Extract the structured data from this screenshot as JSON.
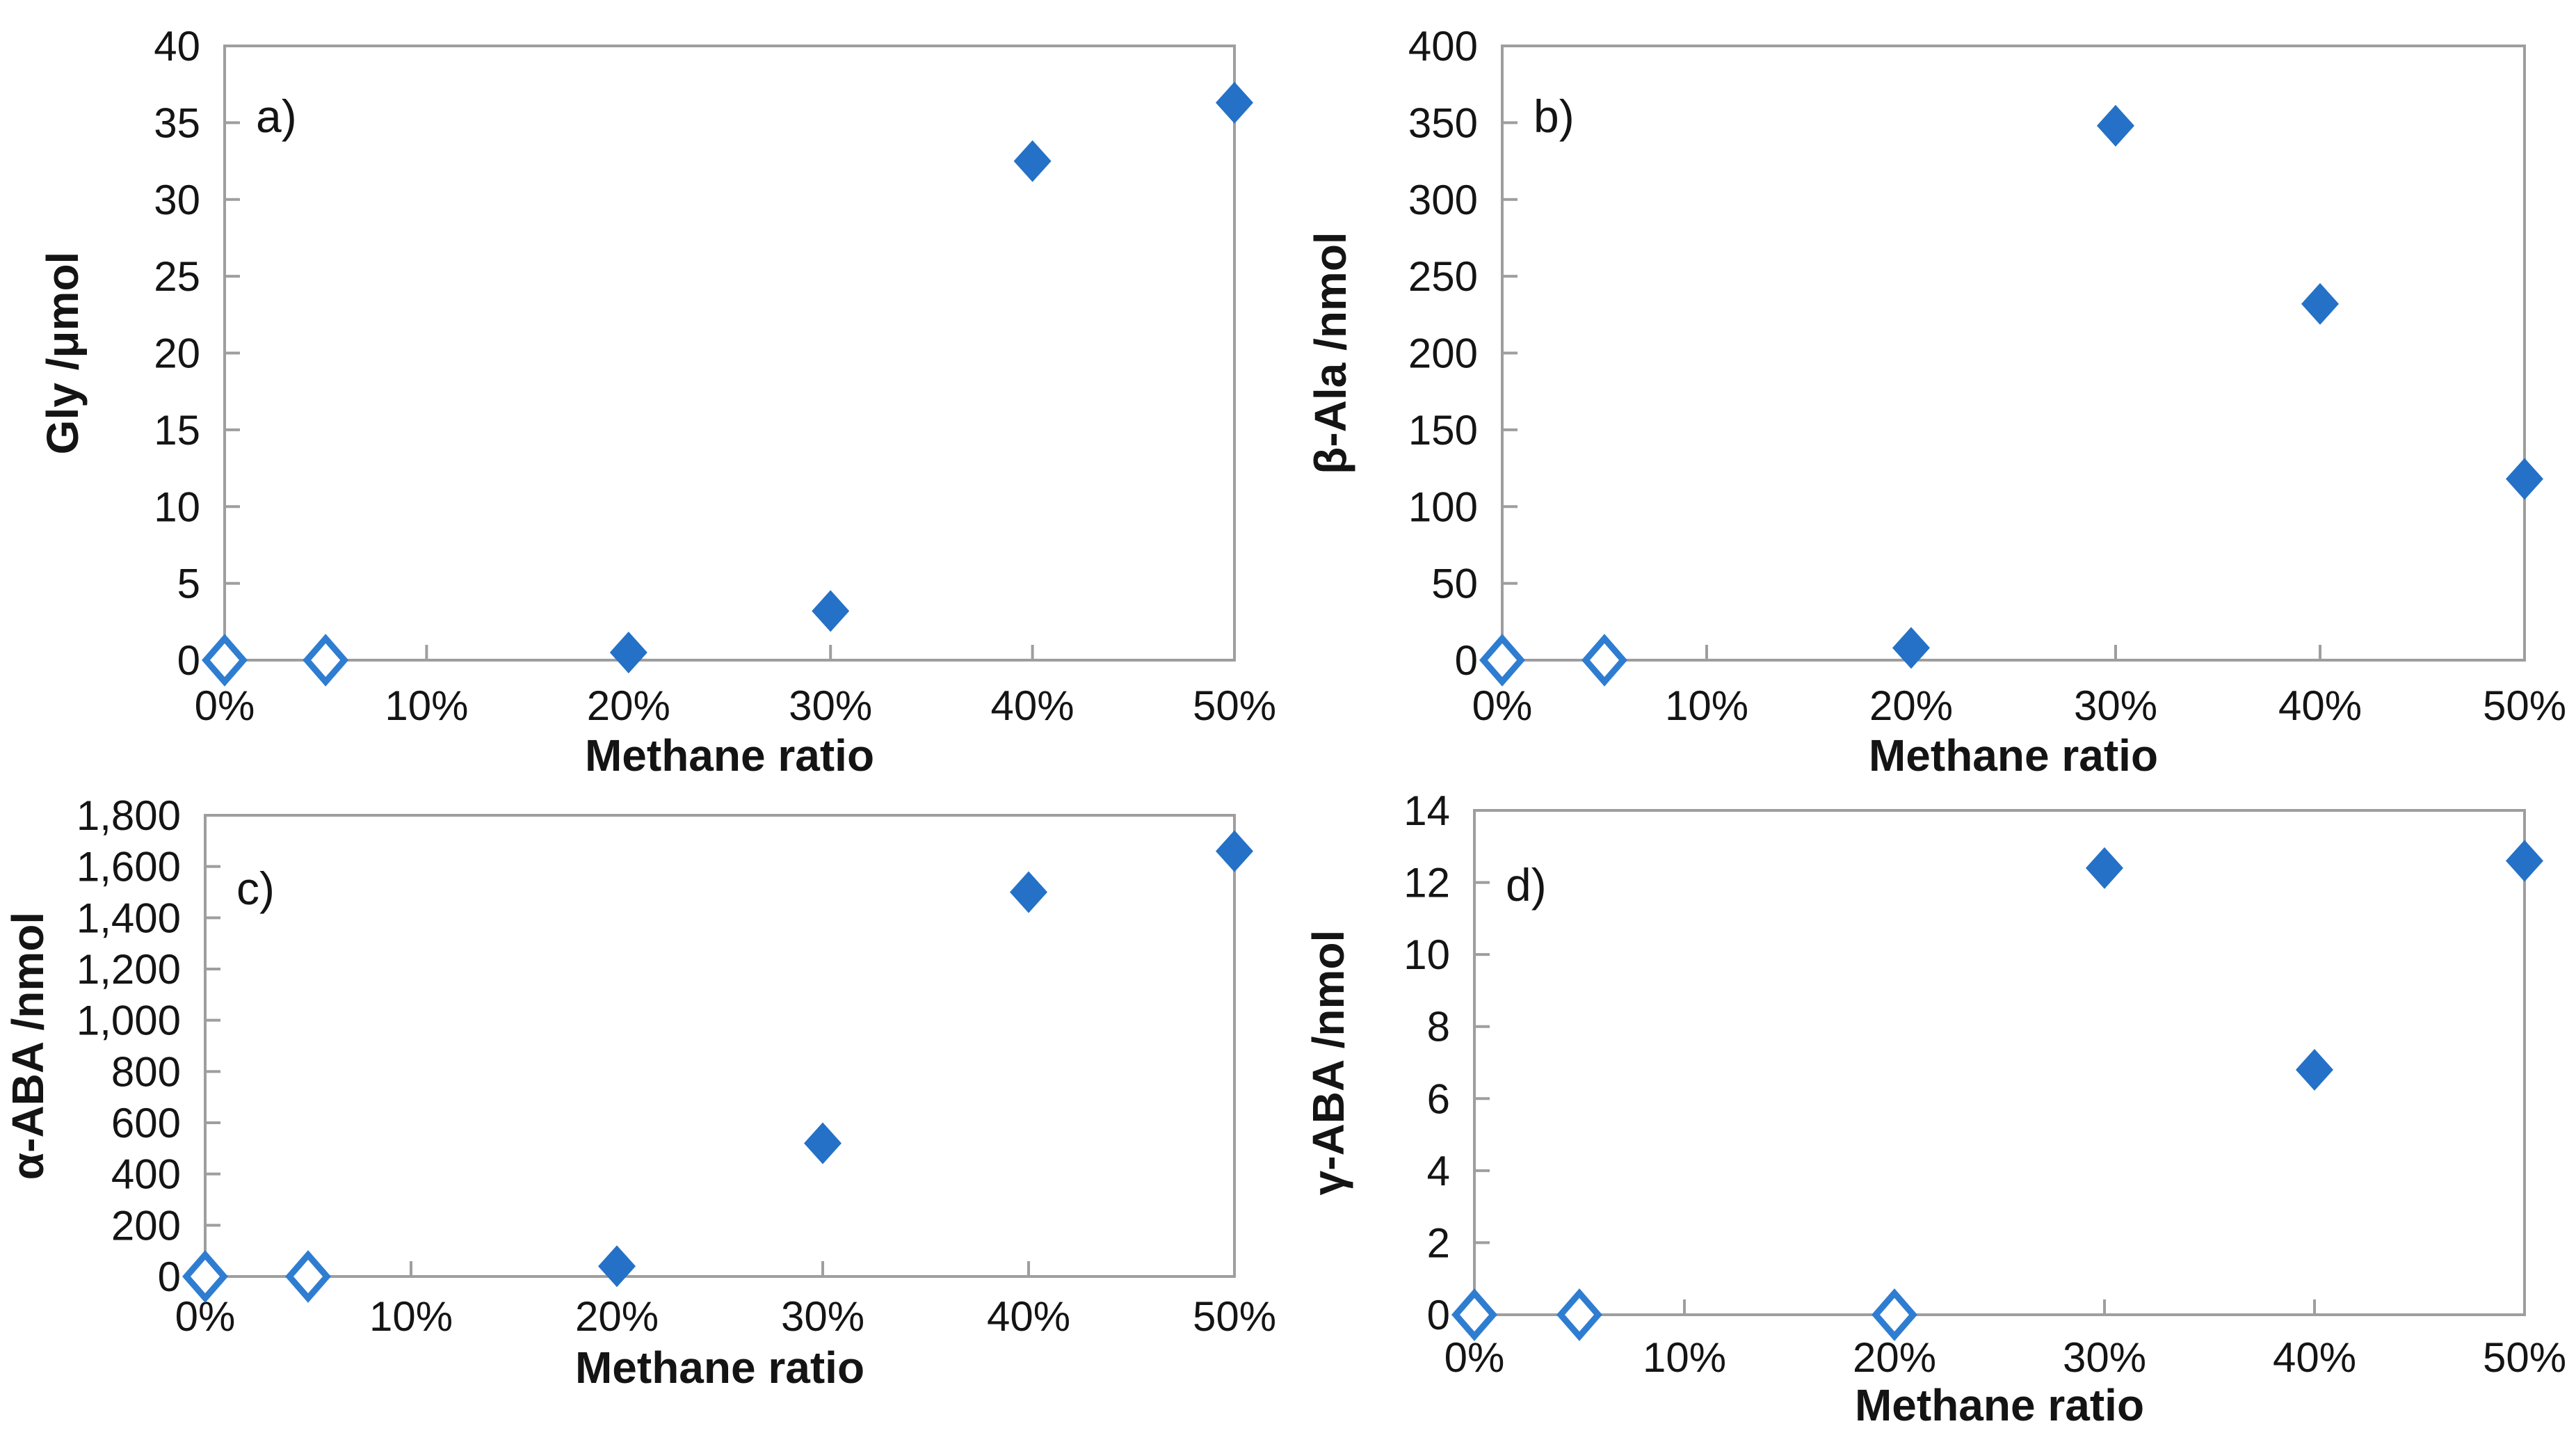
{
  "figure": {
    "background": "#ffffff",
    "description": "Four-panel scatter figure of amino acid yield versus methane ratio"
  },
  "colors": {
    "marker_fill": "#2471c7",
    "marker_open_stroke": "#2e7dd1",
    "axis": "#9e9e9e",
    "text": "#141414"
  },
  "chart_data": [
    {
      "id": "a",
      "type": "scatter",
      "panel_label": "a)",
      "ylabel": "Gly /μmol",
      "xlabel": "Methane ratio",
      "xlim": [
        0,
        50
      ],
      "ylim": [
        0,
        40
      ],
      "grid": false,
      "legend": "none",
      "marker": "diamond",
      "x_ticks": [
        {
          "value": 0,
          "label": "0%"
        },
        {
          "value": 10,
          "label": "10%"
        },
        {
          "value": 20,
          "label": "20%"
        },
        {
          "value": 30,
          "label": "30%"
        },
        {
          "value": 40,
          "label": "40%"
        },
        {
          "value": 50,
          "label": "50%"
        }
      ],
      "y_ticks": [
        {
          "value": 0,
          "label": "0"
        },
        {
          "value": 5,
          "label": "5"
        },
        {
          "value": 10,
          "label": "10"
        },
        {
          "value": 15,
          "label": "15"
        },
        {
          "value": 20,
          "label": "20"
        },
        {
          "value": 25,
          "label": "25"
        },
        {
          "value": 30,
          "label": "30"
        },
        {
          "value": 35,
          "label": "35"
        },
        {
          "value": 40,
          "label": "40"
        }
      ],
      "points": [
        {
          "x": 0,
          "y": 0,
          "filled": false
        },
        {
          "x": 5,
          "y": 0,
          "filled": false
        },
        {
          "x": 20,
          "y": 0.5,
          "filled": true
        },
        {
          "x": 30,
          "y": 3.2,
          "filled": true
        },
        {
          "x": 40,
          "y": 32.5,
          "filled": true
        },
        {
          "x": 50,
          "y": 36.3,
          "filled": true
        }
      ]
    },
    {
      "id": "b",
      "type": "scatter",
      "panel_label": "b)",
      "ylabel": "β-Ala /nmol",
      "xlabel": "Methane ratio",
      "xlim": [
        0,
        50
      ],
      "ylim": [
        0,
        400
      ],
      "grid": false,
      "legend": "none",
      "marker": "diamond",
      "x_ticks": [
        {
          "value": 0,
          "label": "0%"
        },
        {
          "value": 10,
          "label": "10%"
        },
        {
          "value": 20,
          "label": "20%"
        },
        {
          "value": 30,
          "label": "30%"
        },
        {
          "value": 40,
          "label": "40%"
        },
        {
          "value": 50,
          "label": "50%"
        }
      ],
      "y_ticks": [
        {
          "value": 0,
          "label": "0"
        },
        {
          "value": 50,
          "label": "50"
        },
        {
          "value": 100,
          "label": "100"
        },
        {
          "value": 150,
          "label": "150"
        },
        {
          "value": 200,
          "label": "200"
        },
        {
          "value": 250,
          "label": "250"
        },
        {
          "value": 300,
          "label": "300"
        },
        {
          "value": 350,
          "label": "350"
        },
        {
          "value": 400,
          "label": "400"
        }
      ],
      "points": [
        {
          "x": 0,
          "y": 0,
          "filled": false
        },
        {
          "x": 5,
          "y": 0,
          "filled": false
        },
        {
          "x": 20,
          "y": 8,
          "filled": true
        },
        {
          "x": 30,
          "y": 348,
          "filled": true
        },
        {
          "x": 40,
          "y": 232,
          "filled": true
        },
        {
          "x": 50,
          "y": 118,
          "filled": true
        }
      ]
    },
    {
      "id": "c",
      "type": "scatter",
      "panel_label": "c)",
      "ylabel": "α-ABA /nmol",
      "xlabel": "Methane ratio",
      "xlim": [
        0,
        50
      ],
      "ylim": [
        0,
        1800
      ],
      "grid": false,
      "legend": "none",
      "marker": "diamond",
      "x_ticks": [
        {
          "value": 0,
          "label": "0%"
        },
        {
          "value": 10,
          "label": "10%"
        },
        {
          "value": 20,
          "label": "20%"
        },
        {
          "value": 30,
          "label": "30%"
        },
        {
          "value": 40,
          "label": "40%"
        },
        {
          "value": 50,
          "label": "50%"
        }
      ],
      "y_ticks": [
        {
          "value": 0,
          "label": "0"
        },
        {
          "value": 200,
          "label": "200"
        },
        {
          "value": 400,
          "label": "400"
        },
        {
          "value": 600,
          "label": "600"
        },
        {
          "value": 800,
          "label": "800"
        },
        {
          "value": 1000,
          "label": "1,000"
        },
        {
          "value": 1200,
          "label": "1,200"
        },
        {
          "value": 1400,
          "label": "1,400"
        },
        {
          "value": 1600,
          "label": "1,600"
        },
        {
          "value": 1800,
          "label": "1,800"
        }
      ],
      "points": [
        {
          "x": 0,
          "y": 0,
          "filled": false
        },
        {
          "x": 5,
          "y": 0,
          "filled": false
        },
        {
          "x": 20,
          "y": 40,
          "filled": true
        },
        {
          "x": 30,
          "y": 520,
          "filled": true
        },
        {
          "x": 40,
          "y": 1500,
          "filled": true
        },
        {
          "x": 50,
          "y": 1660,
          "filled": true
        }
      ]
    },
    {
      "id": "d",
      "type": "scatter",
      "panel_label": "d)",
      "ylabel": "γ-ABA /nmol",
      "xlabel": "Methane ratio",
      "xlim": [
        0,
        50
      ],
      "ylim": [
        0,
        14
      ],
      "grid": false,
      "legend": "none",
      "marker": "diamond",
      "x_ticks": [
        {
          "value": 0,
          "label": "0%"
        },
        {
          "value": 10,
          "label": "10%"
        },
        {
          "value": 20,
          "label": "20%"
        },
        {
          "value": 30,
          "label": "30%"
        },
        {
          "value": 40,
          "label": "40%"
        },
        {
          "value": 50,
          "label": "50%"
        }
      ],
      "y_ticks": [
        {
          "value": 0,
          "label": "0"
        },
        {
          "value": 2,
          "label": "2"
        },
        {
          "value": 4,
          "label": "4"
        },
        {
          "value": 6,
          "label": "6"
        },
        {
          "value": 8,
          "label": "8"
        },
        {
          "value": 10,
          "label": "10"
        },
        {
          "value": 12,
          "label": "12"
        },
        {
          "value": 14,
          "label": "14"
        }
      ],
      "points": [
        {
          "x": 0,
          "y": 0,
          "filled": false
        },
        {
          "x": 5,
          "y": 0,
          "filled": false
        },
        {
          "x": 20,
          "y": 0,
          "filled": false
        },
        {
          "x": 30,
          "y": 12.4,
          "filled": true
        },
        {
          "x": 40,
          "y": 6.8,
          "filled": true
        },
        {
          "x": 50,
          "y": 12.6,
          "filled": true
        }
      ]
    }
  ]
}
